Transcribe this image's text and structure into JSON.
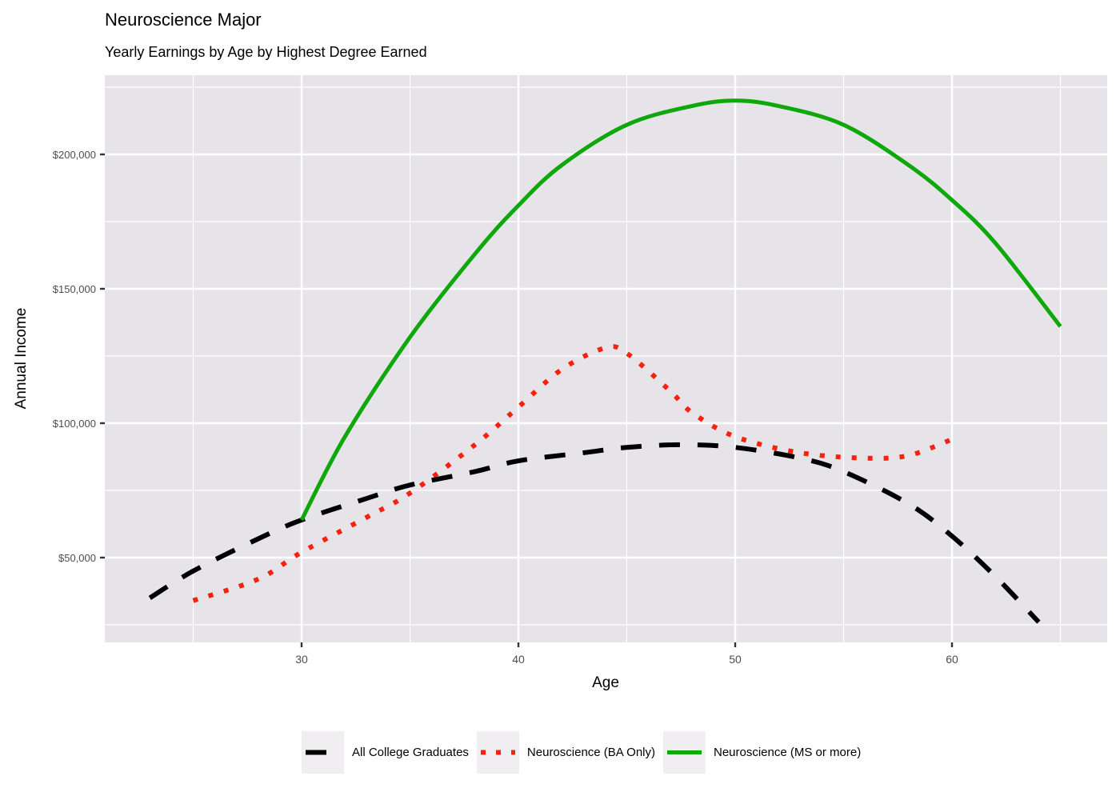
{
  "chart_data": {
    "type": "line",
    "title": "Neuroscience Major",
    "subtitle": "Yearly Earnings by Age by Highest Degree Earned",
    "xlabel": "Age",
    "ylabel": "Annual Income",
    "xlim": [
      21,
      67.3
    ],
    "ylim": [
      18000,
      232000
    ],
    "x_ticks": [
      30,
      40,
      50,
      60
    ],
    "x_tick_labels": [
      "30",
      "40",
      "50",
      "60"
    ],
    "y_ticks": [
      50000,
      100000,
      150000,
      200000
    ],
    "y_tick_labels": [
      "$50,000",
      "$100,000",
      "$150,000",
      "$200,000"
    ],
    "grid": true,
    "legend_position": "bottom",
    "series": [
      {
        "name": "All College Graduates",
        "linetype": "dashed",
        "color": "#000000",
        "x": [
          23,
          25,
          28,
          30,
          33,
          35,
          38,
          40,
          43,
          45,
          47.5,
          50,
          53,
          55,
          58,
          60,
          62,
          64
        ],
        "values": [
          35000,
          45000,
          57000,
          64000,
          72000,
          77000,
          82000,
          86000,
          89000,
          91000,
          92000,
          91000,
          87000,
          82000,
          70000,
          58000,
          43000,
          26000
        ]
      },
      {
        "name": "Neuroscience (BA Only)",
        "linetype": "dotted",
        "color": "#f8200f",
        "x": [
          25,
          28,
          30,
          33,
          35,
          38,
          40,
          42,
          44,
          45,
          47,
          48,
          50,
          53,
          56,
          58,
          60
        ],
        "values": [
          34000,
          42000,
          52000,
          65000,
          74000,
          92000,
          106000,
          120000,
          128000,
          126000,
          112000,
          104000,
          95000,
          89000,
          87000,
          88000,
          94000
        ]
      },
      {
        "name": "Neuroscience (MS or more)",
        "linetype": "solid",
        "color": "#0ea80a",
        "x": [
          30,
          32,
          35,
          38,
          40,
          42,
          45,
          48,
          50,
          52,
          55,
          58,
          60,
          62,
          65
        ],
        "values": [
          64000,
          95000,
          132000,
          163000,
          181000,
          196000,
          211000,
          218000,
          220000,
          218000,
          211000,
          196000,
          183000,
          167000,
          136000
        ]
      }
    ]
  },
  "legend": {
    "items": [
      {
        "label": "All College Graduates"
      },
      {
        "label": "Neuroscience (BA Only)"
      },
      {
        "label": "Neuroscience (MS or more)"
      }
    ]
  }
}
